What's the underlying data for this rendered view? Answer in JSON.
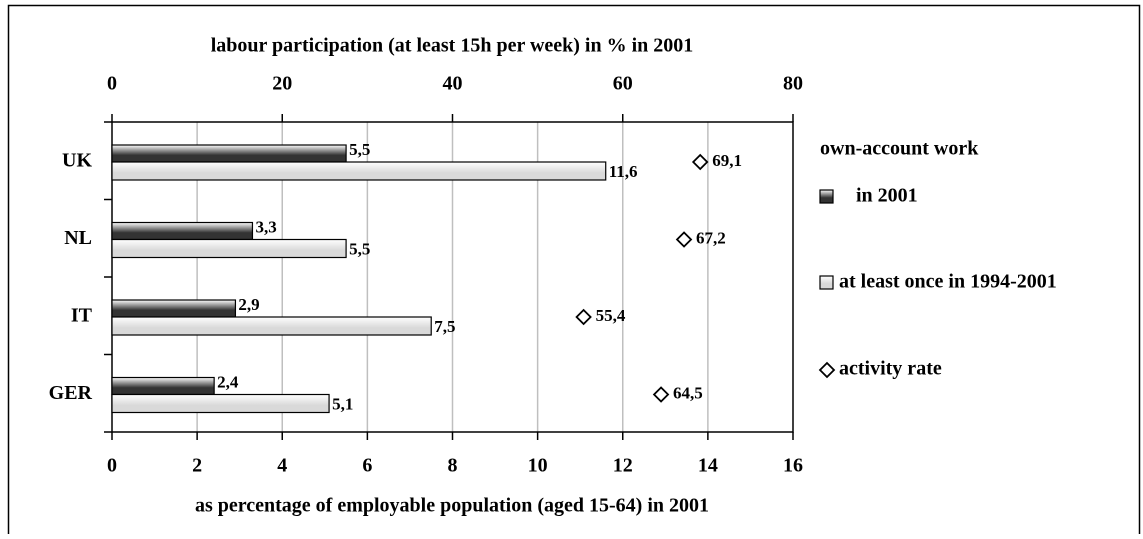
{
  "chart_data": {
    "type": "bar",
    "orientation": "horizontal",
    "x2label": "labour participation (at least 15h per week) in % in 2001",
    "xlabel": "as percentage of employable population (aged 15-64) in 2001",
    "legend_title": "own-account work",
    "categories": [
      "UK",
      "NL",
      "IT",
      "GER"
    ],
    "series": [
      {
        "name": "in 2001",
        "color": "#333333",
        "values": [
          5.5,
          3.3,
          2.9,
          2.4
        ],
        "value_labels": [
          "5,5",
          "3,3",
          "2,9",
          "2,4"
        ]
      },
      {
        "name": "at least once in 1994-2001",
        "color": "#d9d9d9",
        "values": [
          11.6,
          5.5,
          7.5,
          5.1
        ],
        "value_labels": [
          "11,6",
          "5,5",
          "7,5",
          "5,1"
        ]
      },
      {
        "name": "activity rate",
        "axis": "x2",
        "marker": "diamond",
        "color": "#000000",
        "values": [
          69.1,
          67.2,
          55.4,
          64.5
        ],
        "value_labels": [
          "69,1",
          "67,2",
          "55,4",
          "64,5"
        ]
      }
    ],
    "xlim": [
      0,
      16
    ],
    "xticks": [
      0,
      2,
      4,
      6,
      8,
      10,
      12,
      14,
      16
    ],
    "x2lim": [
      0,
      80
    ],
    "x2ticks": [
      0,
      20,
      40,
      60,
      80
    ],
    "grid": true
  }
}
